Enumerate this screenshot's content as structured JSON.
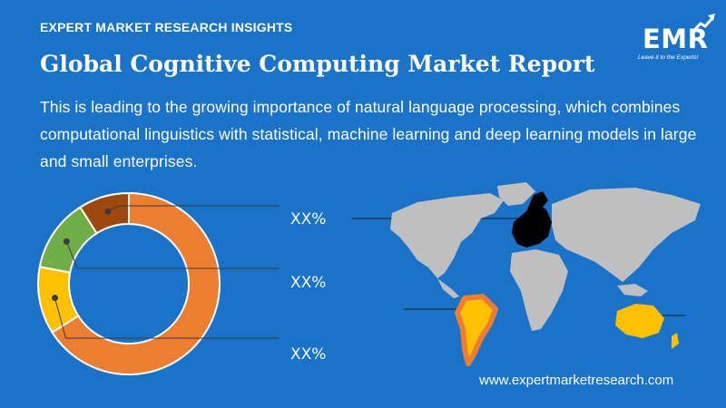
{
  "header": {
    "kicker": "EXPERT MARKET RESEARCH INSIGHTS",
    "title": "Global Cognitive Computing Market Report",
    "description": "This is leading to the growing importance of natural language processing, which combines computational linguistics with statistical, machine learning and deep learning models in large and small enterprises."
  },
  "logo": {
    "text": "EMR",
    "tagline": "Leave it to the Experts!"
  },
  "footer": {
    "website": "www.expertmarketresearch.com"
  },
  "colors": {
    "background": "#1a73c9",
    "orange": "#ed7d31",
    "yellow": "#ffc000",
    "green": "#70ad47",
    "brown": "#9e480e",
    "map_gray": "#bfbfbf",
    "europe": "#000000"
  },
  "chart_data": {
    "type": "pie",
    "variant": "donut",
    "slices": [
      {
        "label": "XX%",
        "value": 66,
        "color": "#ed7d31"
      },
      {
        "label": "XX%",
        "value": 12,
        "color": "#ffc000"
      },
      {
        "label": "XX%",
        "value": 13,
        "color": "#70ad47"
      },
      {
        "label": "XX%",
        "value": 9,
        "color": "#9e480e"
      }
    ],
    "callout_labels": [
      "XX%",
      "XX%",
      "XX%"
    ],
    "legend": "none"
  }
}
